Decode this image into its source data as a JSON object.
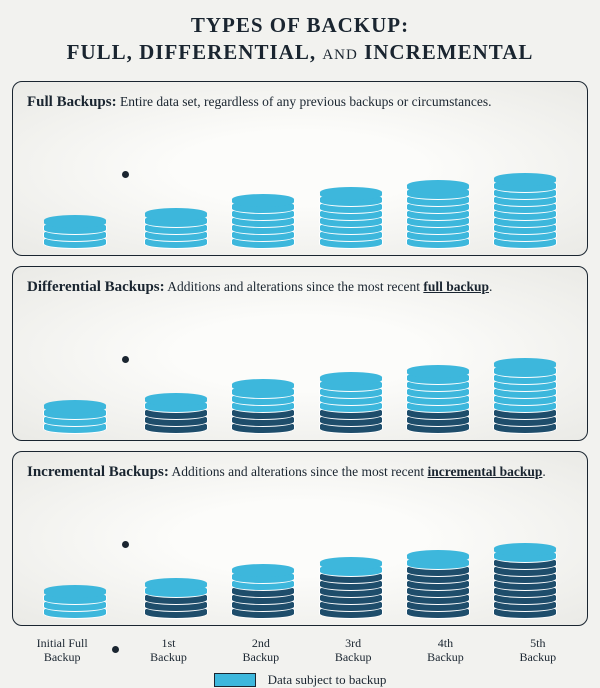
{
  "title_line1": "TYPES OF BACKUP:",
  "title_line2_a": "FULL, DIFFERENTIAL, ",
  "title_line2_and": "AND",
  "title_line2_b": " INCREMENTAL",
  "colors": {
    "active": "#3db7dc",
    "inactive": "#1e4d6b",
    "border": "#1a2530",
    "disc_border": "#ffffff",
    "panel_border": "#1a2530"
  },
  "disc_style": {
    "width": 64,
    "height": 14,
    "ellipse_ratio": "50% / 38%",
    "overlap": -7
  },
  "panels": [
    {
      "id": "full",
      "lead": "Full Backups:",
      "desc": " Entire data set, regardless of any previous backups or circumstances.",
      "emph_word": null,
      "stacks": [
        {
          "discs": [
            1,
            1,
            1
          ]
        },
        {
          "discs": [
            1,
            1,
            1,
            1
          ]
        },
        {
          "discs": [
            1,
            1,
            1,
            1,
            1,
            1
          ]
        },
        {
          "discs": [
            1,
            1,
            1,
            1,
            1,
            1,
            1
          ]
        },
        {
          "discs": [
            1,
            1,
            1,
            1,
            1,
            1,
            1,
            1
          ]
        },
        {
          "discs": [
            1,
            1,
            1,
            1,
            1,
            1,
            1,
            1,
            1
          ]
        }
      ]
    },
    {
      "id": "differential",
      "lead": "Differential Backups:",
      "desc_before": " Additions and alterations since the most recent ",
      "emph_word": "full backup",
      "desc_after": ".",
      "stacks": [
        {
          "discs": [
            1,
            1,
            1
          ]
        },
        {
          "discs": [
            1,
            0,
            0,
            0
          ]
        },
        {
          "discs": [
            1,
            1,
            1,
            0,
            0,
            0
          ]
        },
        {
          "discs": [
            1,
            1,
            1,
            1,
            0,
            0,
            0
          ]
        },
        {
          "discs": [
            1,
            1,
            1,
            1,
            1,
            0,
            0,
            0
          ]
        },
        {
          "discs": [
            1,
            1,
            1,
            1,
            1,
            1,
            0,
            0,
            0
          ]
        }
      ]
    },
    {
      "id": "incremental",
      "lead": "Incremental Backups:",
      "desc_before": " Additions and alterations since the most recent ",
      "emph_word": "incremental backup",
      "desc_after": ".",
      "stacks": [
        {
          "discs": [
            1,
            1,
            1
          ]
        },
        {
          "discs": [
            1,
            0,
            0,
            0
          ]
        },
        {
          "discs": [
            1,
            1,
            0,
            0,
            0,
            0
          ]
        },
        {
          "discs": [
            1,
            0,
            0,
            0,
            0,
            0,
            0
          ]
        },
        {
          "discs": [
            1,
            0,
            0,
            0,
            0,
            0,
            0,
            0
          ]
        },
        {
          "discs": [
            1,
            0,
            0,
            0,
            0,
            0,
            0,
            0,
            0
          ]
        }
      ]
    }
  ],
  "axis_labels": [
    "Initial Full Backup",
    "1st Backup",
    "2nd Backup",
    "3rd Backup",
    "4th Backup",
    "5th Backup"
  ],
  "legend_label": "Data subject to backup"
}
